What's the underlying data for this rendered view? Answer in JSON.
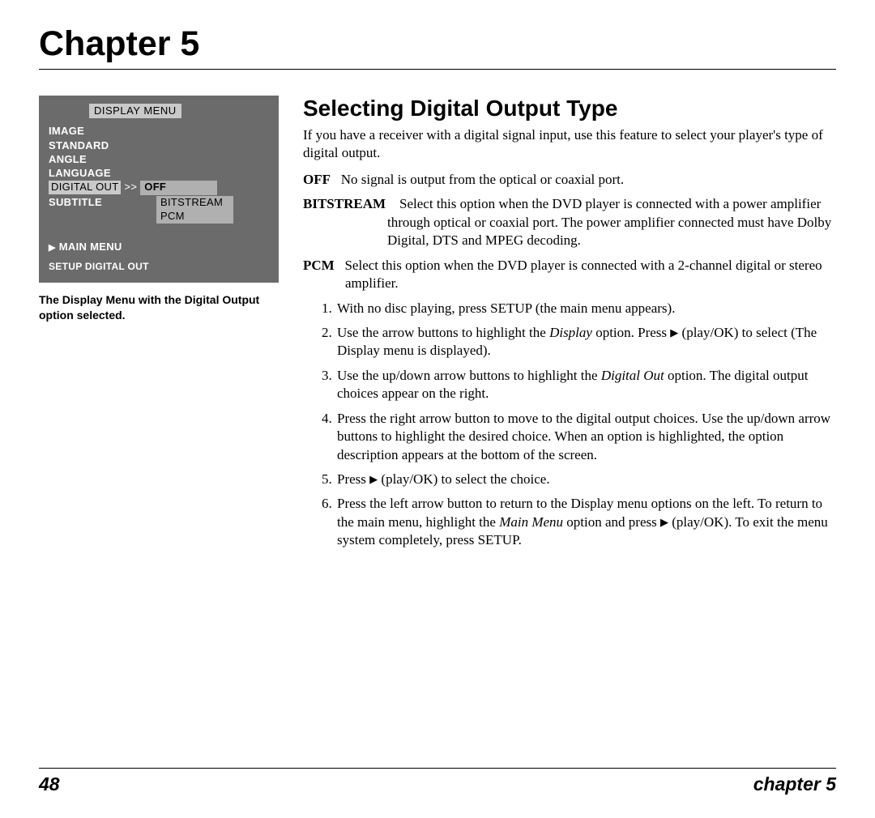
{
  "header": {
    "chapter_title": "Chapter 5"
  },
  "osd": {
    "title": "DISPLAY MENU",
    "items_before": [
      "IMAGE",
      "STANDARD",
      "ANGLE",
      "LANGUAGE"
    ],
    "selected_item": "DIGITAL OUT",
    "arrow": ">>",
    "options": {
      "selected": "OFF",
      "rest": [
        "BITSTREAM",
        "PCM"
      ]
    },
    "item_after": "SUBTITLE",
    "main_menu_label": "MAIN MENU",
    "status_line": "SETUP DIGITAL OUT",
    "colors": {
      "panel_bg": "#6b6b6b",
      "highlight_bg": "#c9c9c9",
      "submenu_bg": "#b0b0b0",
      "text_light": "#ffffff",
      "text_dark": "#000000"
    }
  },
  "caption": "The Display Menu with the Digital Output option selected.",
  "section": {
    "heading": "Selecting Digital Output Type",
    "intro": "If you have a receiver with a digital signal input, use this feature to select your player's type of digital output.",
    "defs": [
      {
        "term": "OFF",
        "text": "No signal is output from the optical or coaxial port."
      },
      {
        "term": "BITSTREAM",
        "text": "Select this option when the DVD player is connected with a power amplifier through optical or coaxial port. The power amplifier connected must have Dolby Digital, DTS and MPEG decoding."
      },
      {
        "term": "PCM",
        "text": "Select this option when the DVD player is connected with a 2-channel digital or stereo amplifier."
      }
    ],
    "steps": [
      "With no disc playing, press SETUP (the main menu appears).",
      "Use the arrow buttons to highlight the <em class=\"lbl\">Display</em> option. Press <span class=\"play-icon\">▶</span> (play/OK) to select (The Display  menu is displayed).",
      "Use the up/down arrow buttons to highlight the <em class=\"lbl\">Digital Out</em> option. The digital output choices appear on the right.",
      "Press the right arrow button to move to the digital output choices. Use the up/down arrow buttons to highlight the desired choice. When an option is highlighted, the option description appears at the bottom of the screen.",
      "Press <span class=\"play-icon\">▶</span> (play/OK) to select the choice.",
      "Press the left arrow button to return to the Display menu options on the left. To return to the main menu, highlight the <em class=\"lbl\">Main Menu</em> option and press <span class=\"play-icon\">▶</span> (play/OK). To exit the menu system completely, press SETUP."
    ]
  },
  "footer": {
    "page": "48",
    "label": "chapter 5"
  }
}
